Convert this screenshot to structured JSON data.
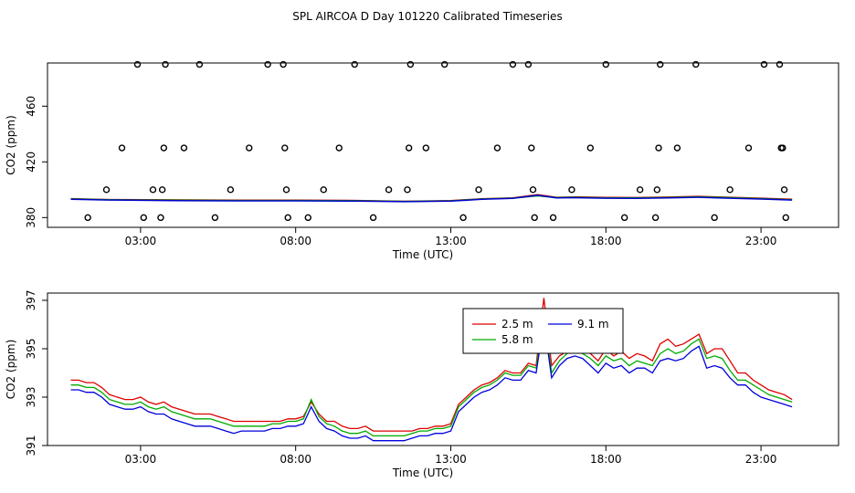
{
  "title": "SPL AIRCOA D  Day 101220  Calibrated Timeseries",
  "chart_data": [
    {
      "type": "scatter",
      "xlabel": "Time (UTC)",
      "ylabel": "CO2 (ppm)",
      "xlim": [
        0.0,
        25.5
      ],
      "ylim": [
        373.0,
        491.0
      ],
      "x_ticks": [
        "03:00",
        "08:00",
        "13:00",
        "18:00",
        "23:00"
      ],
      "x_tick_values": [
        3,
        8,
        13,
        18,
        23
      ],
      "y_ticks": [
        "380",
        "420",
        "460"
      ],
      "y_tick_values": [
        380,
        420,
        460
      ],
      "grid": false,
      "outlier_points": [
        {
          "x": 1.3,
          "y": 380
        },
        {
          "x": 1.9,
          "y": 400
        },
        {
          "x": 2.4,
          "y": 430
        },
        {
          "x": 2.9,
          "y": 490
        },
        {
          "x": 3.4,
          "y": 400
        },
        {
          "x": 3.1,
          "y": 380
        },
        {
          "x": 3.7,
          "y": 400
        },
        {
          "x": 3.75,
          "y": 430
        },
        {
          "x": 3.8,
          "y": 490
        },
        {
          "x": 3.65,
          "y": 380
        },
        {
          "x": 4.4,
          "y": 430
        },
        {
          "x": 4.9,
          "y": 490
        },
        {
          "x": 5.4,
          "y": 380
        },
        {
          "x": 5.9,
          "y": 400
        },
        {
          "x": 6.5,
          "y": 430
        },
        {
          "x": 7.1,
          "y": 490
        },
        {
          "x": 7.6,
          "y": 490
        },
        {
          "x": 7.65,
          "y": 430
        },
        {
          "x": 7.7,
          "y": 400
        },
        {
          "x": 7.75,
          "y": 380
        },
        {
          "x": 8.4,
          "y": 380
        },
        {
          "x": 8.9,
          "y": 400
        },
        {
          "x": 9.4,
          "y": 430
        },
        {
          "x": 9.9,
          "y": 490
        },
        {
          "x": 10.5,
          "y": 380
        },
        {
          "x": 11.0,
          "y": 400
        },
        {
          "x": 11.6,
          "y": 400
        },
        {
          "x": 11.65,
          "y": 430
        },
        {
          "x": 11.7,
          "y": 490
        },
        {
          "x": 12.2,
          "y": 430
        },
        {
          "x": 12.8,
          "y": 490
        },
        {
          "x": 13.4,
          "y": 380
        },
        {
          "x": 13.9,
          "y": 400
        },
        {
          "x": 14.5,
          "y": 430
        },
        {
          "x": 15.0,
          "y": 490
        },
        {
          "x": 15.5,
          "y": 490
        },
        {
          "x": 15.6,
          "y": 430
        },
        {
          "x": 15.65,
          "y": 400
        },
        {
          "x": 15.7,
          "y": 380
        },
        {
          "x": 16.3,
          "y": 380
        },
        {
          "x": 16.9,
          "y": 400
        },
        {
          "x": 17.5,
          "y": 430
        },
        {
          "x": 18.0,
          "y": 490
        },
        {
          "x": 18.6,
          "y": 380
        },
        {
          "x": 19.1,
          "y": 400
        },
        {
          "x": 19.6,
          "y": 380
        },
        {
          "x": 19.65,
          "y": 400
        },
        {
          "x": 19.7,
          "y": 430
        },
        {
          "x": 19.75,
          "y": 490
        },
        {
          "x": 20.3,
          "y": 430
        },
        {
          "x": 20.9,
          "y": 490
        },
        {
          "x": 21.5,
          "y": 380
        },
        {
          "x": 22.0,
          "y": 400
        },
        {
          "x": 22.6,
          "y": 430
        },
        {
          "x": 23.1,
          "y": 490
        },
        {
          "x": 23.6,
          "y": 490
        },
        {
          "x": 23.65,
          "y": 430
        },
        {
          "x": 23.7,
          "y": 430
        },
        {
          "x": 23.75,
          "y": 400
        },
        {
          "x": 23.8,
          "y": 380
        }
      ],
      "lines": [
        {
          "color": "#cc0000",
          "x": [
            0.75,
            2,
            4,
            6,
            8,
            10,
            11.5,
            13,
            14,
            15,
            15.8,
            16.4,
            17,
            18,
            19,
            20,
            21,
            22,
            23,
            24
          ],
          "y": [
            393.6,
            392.9,
            392.7,
            392.5,
            392.5,
            392.3,
            391.7,
            392.2,
            393.5,
            394.2,
            396.5,
            394.6,
            394.8,
            394.5,
            394.4,
            394.7,
            395.2,
            394.6,
            393.9,
            393.1
          ]
        },
        {
          "color": "#00aa00",
          "x": [
            0.75,
            2,
            4,
            6,
            8,
            10,
            11.5,
            13,
            14,
            15,
            15.8,
            16.4,
            17,
            18,
            19,
            20,
            21,
            22,
            23,
            24
          ],
          "y": [
            393.4,
            392.8,
            392.5,
            392.3,
            392.3,
            392.1,
            391.6,
            392.0,
            393.3,
            394.0,
            395.6,
            394.4,
            394.6,
            394.2,
            394.1,
            394.4,
            394.9,
            394.3,
            393.6,
            392.8
          ]
        },
        {
          "color": "#0000cc",
          "x": [
            0.75,
            2,
            4,
            6,
            8,
            10,
            11.5,
            13,
            14,
            15,
            15.8,
            16.4,
            17,
            18,
            19,
            20,
            21,
            22,
            23,
            24
          ],
          "y": [
            393.2,
            392.6,
            392.2,
            392.0,
            392.0,
            391.8,
            391.4,
            391.8,
            393.1,
            393.8,
            396.0,
            394.2,
            394.3,
            393.9,
            393.8,
            394.2,
            394.6,
            393.9,
            393.3,
            392.6
          ]
        }
      ]
    },
    {
      "type": "line",
      "xlabel": "Time (UTC)",
      "ylabel": "CO2 (ppm)",
      "xlim": [
        0.0,
        25.5
      ],
      "ylim": [
        391.0,
        397.3
      ],
      "x_ticks": [
        "03:00",
        "08:00",
        "13:00",
        "18:00",
        "23:00"
      ],
      "x_tick_values": [
        3,
        8,
        13,
        18,
        23
      ],
      "y_ticks": [
        "391",
        "393",
        "395",
        "397"
      ],
      "y_tick_values": [
        391,
        393,
        395,
        397
      ],
      "grid": false,
      "legend_placement": "top-center",
      "x": [
        0.75,
        1.0,
        1.25,
        1.5,
        1.75,
        2.0,
        2.25,
        2.5,
        2.75,
        3.0,
        3.25,
        3.5,
        3.75,
        4.0,
        4.25,
        4.5,
        4.75,
        5.0,
        5.25,
        5.5,
        5.75,
        6.0,
        6.25,
        6.5,
        6.75,
        7.0,
        7.25,
        7.5,
        7.75,
        8.0,
        8.25,
        8.5,
        8.75,
        9.0,
        9.25,
        9.5,
        9.75,
        10.0,
        10.25,
        10.5,
        10.75,
        11.0,
        11.25,
        11.5,
        11.75,
        12.0,
        12.25,
        12.5,
        12.75,
        13.0,
        13.25,
        13.5,
        13.75,
        14.0,
        14.25,
        14.5,
        14.75,
        15.0,
        15.25,
        15.5,
        15.75,
        16.0,
        16.25,
        16.5,
        16.75,
        17.0,
        17.25,
        17.5,
        17.75,
        18.0,
        18.25,
        18.5,
        18.75,
        19.0,
        19.25,
        19.5,
        19.75,
        20.0,
        20.25,
        20.5,
        20.75,
        21.0,
        21.25,
        21.5,
        21.75,
        22.0,
        22.25,
        22.5,
        22.75,
        23.0,
        23.25,
        23.5,
        23.75,
        24.0
      ],
      "series": [
        {
          "name": "2.5 m",
          "color": "#dd0000",
          "values": [
            393.7,
            393.7,
            393.6,
            393.6,
            393.4,
            393.1,
            393.0,
            392.9,
            392.9,
            393.0,
            392.8,
            392.7,
            392.8,
            392.6,
            392.5,
            392.4,
            392.3,
            392.3,
            392.3,
            392.2,
            392.1,
            392.0,
            392.0,
            392.0,
            392.0,
            392.0,
            392.0,
            392.0,
            392.1,
            392.1,
            392.2,
            392.8,
            392.3,
            392.0,
            392.0,
            391.8,
            391.7,
            391.7,
            391.8,
            391.6,
            391.6,
            391.6,
            391.6,
            391.6,
            391.6,
            391.7,
            391.7,
            391.8,
            391.8,
            391.9,
            392.7,
            393.0,
            393.3,
            393.5,
            393.6,
            393.8,
            394.1,
            394.0,
            394.0,
            394.4,
            394.3,
            397.1,
            394.3,
            394.7,
            394.9,
            395.0,
            395.0,
            394.8,
            394.5,
            395.0,
            394.7,
            394.9,
            394.6,
            394.8,
            394.7,
            394.5,
            395.2,
            395.4,
            395.1,
            395.2,
            395.4,
            395.6,
            394.8,
            395.0,
            395.0,
            394.5,
            394.0,
            394.0,
            393.7,
            393.5,
            393.3,
            393.2,
            393.1,
            392.9
          ]
        },
        {
          "name": "5.8 m",
          "color": "#00aa00",
          "values": [
            393.5,
            393.5,
            393.4,
            393.4,
            393.2,
            392.9,
            392.8,
            392.7,
            392.7,
            392.8,
            392.6,
            392.5,
            392.6,
            392.4,
            392.3,
            392.2,
            392.1,
            392.1,
            392.1,
            392.0,
            391.9,
            391.8,
            391.8,
            391.8,
            391.8,
            391.8,
            391.9,
            391.9,
            392.0,
            392.0,
            392.1,
            392.9,
            392.2,
            391.9,
            391.8,
            391.6,
            391.5,
            391.5,
            391.6,
            391.4,
            391.4,
            391.4,
            391.4,
            391.4,
            391.5,
            391.6,
            391.6,
            391.7,
            391.7,
            391.8,
            392.6,
            392.9,
            393.2,
            393.4,
            393.5,
            393.7,
            394.0,
            393.9,
            393.9,
            394.3,
            394.2,
            396.3,
            394.0,
            394.5,
            394.8,
            394.9,
            394.8,
            394.6,
            394.3,
            394.7,
            394.5,
            394.6,
            394.3,
            394.5,
            394.4,
            394.3,
            394.8,
            395.0,
            394.8,
            394.9,
            395.2,
            395.4,
            394.6,
            394.7,
            394.6,
            394.1,
            393.7,
            393.7,
            393.5,
            393.3,
            393.1,
            393.0,
            392.9,
            392.8
          ]
        },
        {
          "name": "9.1 m",
          "color": "#0000dd",
          "values": [
            393.3,
            393.3,
            393.2,
            393.2,
            393.0,
            392.7,
            392.6,
            392.5,
            392.5,
            392.6,
            392.4,
            392.3,
            392.3,
            392.1,
            392.0,
            391.9,
            391.8,
            391.8,
            391.8,
            391.7,
            391.6,
            391.5,
            391.6,
            391.6,
            391.6,
            391.6,
            391.7,
            391.7,
            391.8,
            391.8,
            391.9,
            392.6,
            392.0,
            391.7,
            391.6,
            391.4,
            391.3,
            391.3,
            391.4,
            391.2,
            391.2,
            391.2,
            391.2,
            391.2,
            391.3,
            391.4,
            391.4,
            391.5,
            391.5,
            391.6,
            392.4,
            392.7,
            393.0,
            393.2,
            393.3,
            393.5,
            393.8,
            393.7,
            393.7,
            394.1,
            394.0,
            396.1,
            393.8,
            394.3,
            394.6,
            394.7,
            394.6,
            394.3,
            394.0,
            394.4,
            394.2,
            394.3,
            394.0,
            394.2,
            394.2,
            394.0,
            394.5,
            394.6,
            394.5,
            394.6,
            394.9,
            395.1,
            394.2,
            394.3,
            394.2,
            393.8,
            393.5,
            393.5,
            393.2,
            393.0,
            392.9,
            392.8,
            392.7,
            392.6
          ]
        }
      ]
    }
  ]
}
